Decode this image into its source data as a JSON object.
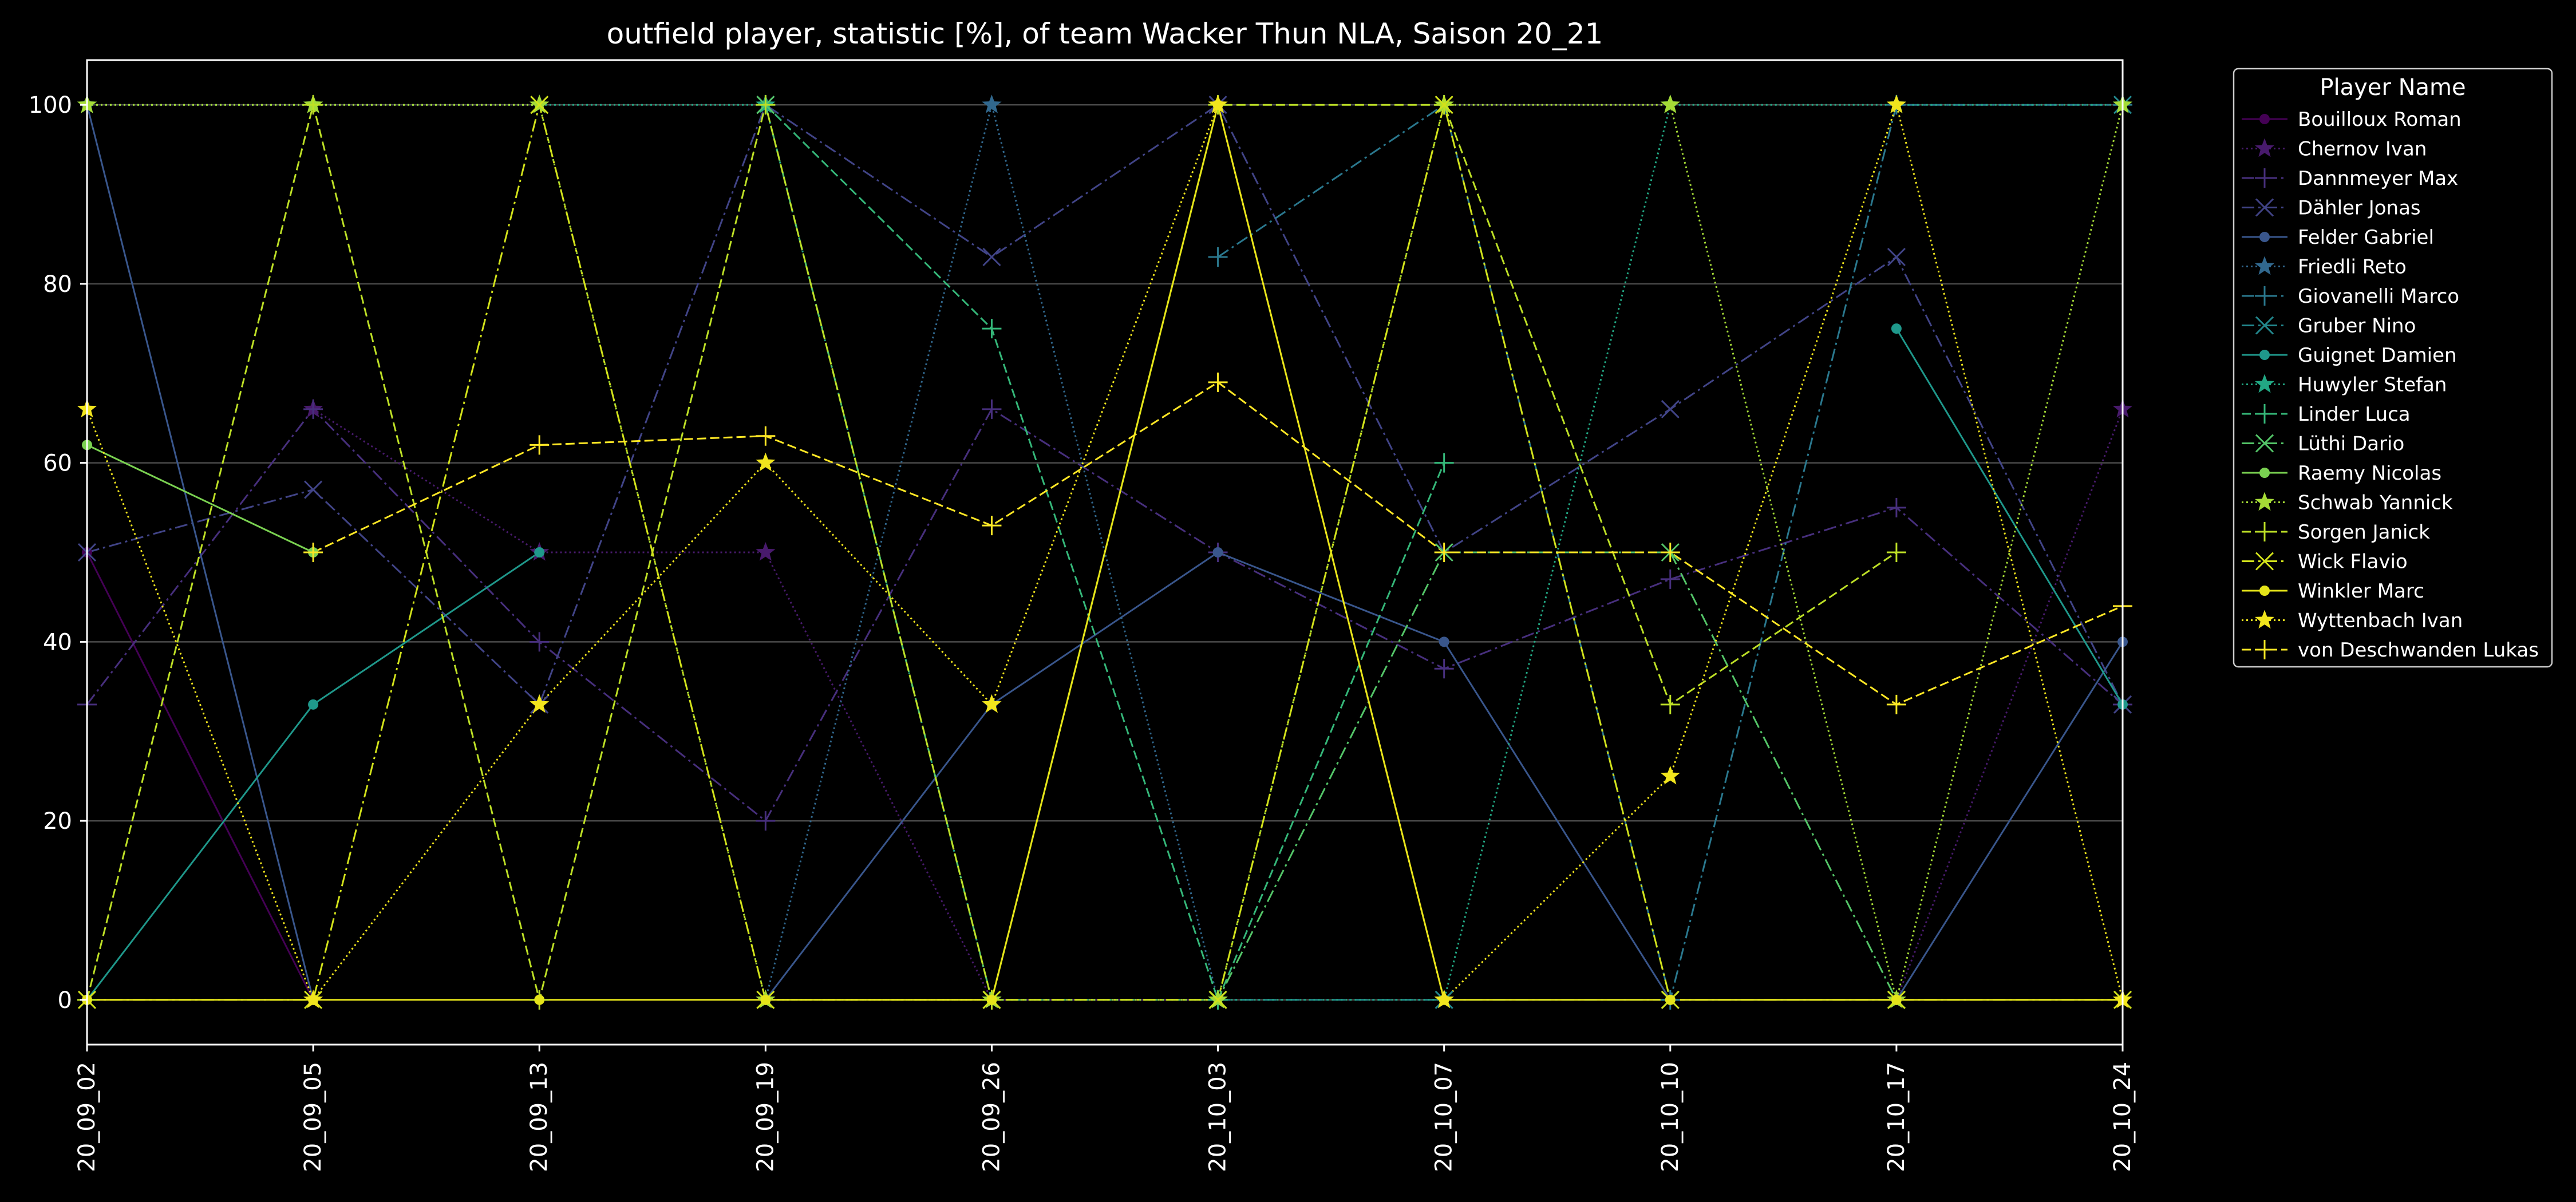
{
  "chart_data": {
    "type": "line",
    "title": "outfield player, statistic [%], of team Wacker Thun NLA, Saison 20_21",
    "xlabel": "",
    "ylabel": "",
    "x": [
      "20_09_02",
      "20_09_05",
      "20_09_13",
      "20_09_19",
      "20_09_26",
      "20_10_03",
      "20_10_07",
      "20_10_10",
      "20_10_17",
      "20_10_24"
    ],
    "ylim": [
      -5,
      105
    ],
    "yticks": [
      0,
      20,
      40,
      60,
      80,
      100
    ],
    "grid": "horizontal",
    "background": "#000000",
    "legend": {
      "title": "Player Name",
      "placement": "outside-right"
    },
    "series": [
      {
        "name": "Bouilloux Roman",
        "color": "#440154",
        "linestyle": "solid",
        "marker": "circle",
        "values": [
          50,
          0,
          null,
          null,
          null,
          null,
          null,
          null,
          null,
          null
        ]
      },
      {
        "name": "Chernov Ivan",
        "color": "#481a6c",
        "linestyle": "dotted",
        "marker": "star",
        "values": [
          null,
          66,
          50,
          50,
          0,
          0,
          null,
          null,
          0,
          66
        ]
      },
      {
        "name": "Dannmeyer Max",
        "color": "#472f7d",
        "linestyle": "dashdot",
        "marker": "plus",
        "values": [
          33,
          66,
          40,
          20,
          66,
          50,
          37,
          47,
          55,
          33
        ]
      },
      {
        "name": "Dähler Jonas",
        "color": "#414487",
        "linestyle": "dashdot",
        "marker": "x",
        "values": [
          50,
          57,
          33,
          100,
          83,
          100,
          50,
          66,
          83,
          33
        ]
      },
      {
        "name": "Felder Gabriel",
        "color": "#39568c",
        "linestyle": "solid",
        "marker": "circle",
        "values": [
          100,
          0,
          null,
          0,
          33,
          50,
          40,
          0,
          0,
          40
        ]
      },
      {
        "name": "Friedli Reto",
        "color": "#31688e",
        "linestyle": "dotted",
        "marker": "star",
        "values": [
          null,
          null,
          null,
          0,
          100,
          0,
          null,
          null,
          null,
          null
        ]
      },
      {
        "name": "Giovanelli Marco",
        "color": "#2a788e",
        "linestyle": "dashdot",
        "marker": "plus",
        "values": [
          null,
          null,
          null,
          null,
          null,
          83,
          100,
          0,
          100,
          100
        ]
      },
      {
        "name": "Gruber Nino",
        "color": "#23888e",
        "linestyle": "dashdot",
        "marker": "x",
        "values": [
          null,
          null,
          null,
          null,
          null,
          0,
          0,
          0,
          null,
          100
        ]
      },
      {
        "name": "Guignet Damien",
        "color": "#1f988b",
        "linestyle": "solid",
        "marker": "circle",
        "values": [
          0,
          33,
          50,
          null,
          null,
          null,
          null,
          null,
          75,
          33
        ]
      },
      {
        "name": "Huwyler Stefan",
        "color": "#22a884",
        "linestyle": "dotted",
        "marker": "star",
        "values": [
          100,
          100,
          100,
          100,
          0,
          0,
          0,
          100,
          100,
          100
        ]
      },
      {
        "name": "Linder Luca",
        "color": "#35b779",
        "linestyle": "dashed",
        "marker": "plus",
        "values": [
          null,
          null,
          null,
          100,
          75,
          0,
          60,
          null,
          null,
          null
        ]
      },
      {
        "name": "Lüthi Dario",
        "color": "#54c568",
        "linestyle": "dashdot",
        "marker": "x",
        "values": [
          null,
          null,
          null,
          100,
          0,
          0,
          50,
          50,
          0,
          null
        ]
      },
      {
        "name": "Raemy Nicolas",
        "color": "#7ad151",
        "linestyle": "solid",
        "marker": "circle",
        "values": [
          62,
          50,
          null,
          null,
          null,
          null,
          null,
          null,
          null,
          null
        ]
      },
      {
        "name": "Schwab Yannick",
        "color": "#a5db36",
        "linestyle": "dotted",
        "marker": "star",
        "values": [
          100,
          100,
          100,
          0,
          0,
          0,
          100,
          100,
          0,
          100
        ]
      },
      {
        "name": "Sorgen Janick",
        "color": "#bddf26",
        "linestyle": "dashed",
        "marker": "plus",
        "values": [
          0,
          100,
          0,
          100,
          0,
          100,
          100,
          33,
          50,
          null
        ]
      },
      {
        "name": "Wick Flavio",
        "color": "#d2e21b",
        "linestyle": "dashdot",
        "marker": "x",
        "values": [
          0,
          0,
          100,
          0,
          0,
          0,
          100,
          0,
          0,
          0
        ]
      },
      {
        "name": "Winkler Marc",
        "color": "#e5e419",
        "linestyle": "solid",
        "marker": "circle",
        "values": [
          0,
          0,
          0,
          0,
          0,
          100,
          0,
          0,
          0,
          0
        ]
      },
      {
        "name": "Wyttenbach Ivan",
        "color": "#f1e51d",
        "linestyle": "dotted",
        "marker": "star",
        "values": [
          66,
          0,
          33,
          60,
          33,
          100,
          0,
          25,
          100,
          0
        ]
      },
      {
        "name": "von Deschwanden Lukas",
        "color": "#fde725",
        "linestyle": "dashed",
        "marker": "plus",
        "values": [
          null,
          50,
          62,
          63,
          53,
          69,
          50,
          50,
          33,
          44
        ]
      }
    ]
  }
}
